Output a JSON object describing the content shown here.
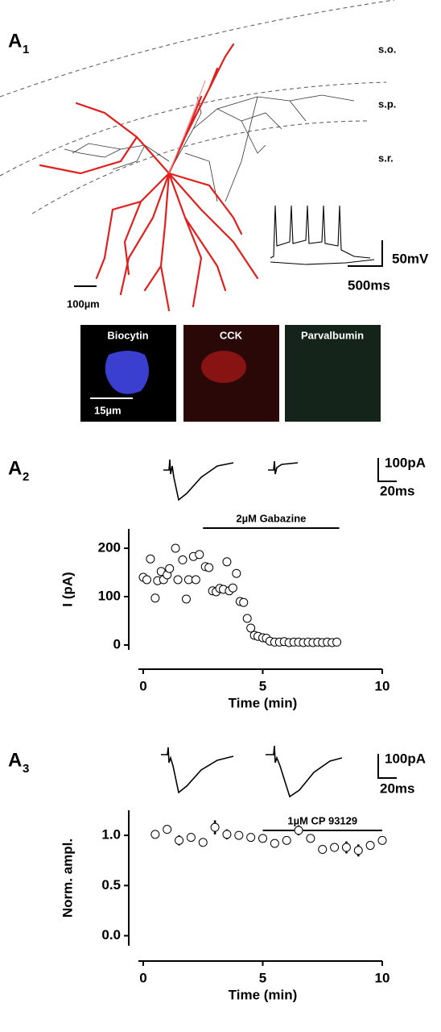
{
  "panels": [
    {
      "letter": "A",
      "index": "1"
    },
    {
      "letter": "A",
      "index": "2"
    },
    {
      "letter": "A",
      "index": "3"
    }
  ],
  "layers": [
    "s.o.",
    "s.p.",
    "s.r."
  ],
  "scale_bars": {
    "a1_length": "100µm",
    "a1_voltage": "50mV",
    "a1_time": "500ms",
    "image_length": "15µm",
    "a2_current": "100pA",
    "a2_time": "20ms",
    "a3_current": "100pA",
    "a3_time": "20ms"
  },
  "images": [
    "Biocytin",
    "CCK",
    "Parvalbumin"
  ],
  "chart_data": [
    {
      "type": "scatter",
      "x_label": "Time (min)",
      "y_label": "I (pA)",
      "color": "#000000",
      "annotation": {
        "text": "2µM Gabazine",
        "x": [
          2.5,
          8.2
        ]
      },
      "x": [
        0,
        0.15,
        0.3,
        0.5,
        0.6,
        0.75,
        0.85,
        1.0,
        1.1,
        1.35,
        1.45,
        1.65,
        1.8,
        1.9,
        2.1,
        2.2,
        2.35,
        2.6,
        2.75,
        2.9,
        3.05,
        3.2,
        3.35,
        3.5,
        3.6,
        3.75,
        3.9,
        4.05,
        4.2,
        4.35,
        4.5,
        4.65,
        4.8,
        5.0,
        5.15,
        5.3,
        5.5,
        5.7,
        5.9,
        6.1,
        6.3,
        6.5,
        6.7,
        6.9,
        7.1,
        7.3,
        7.5,
        7.7,
        7.9,
        8.1
      ],
      "values": [
        140,
        135,
        178,
        97,
        133,
        152,
        135,
        145,
        158,
        200,
        135,
        176,
        95,
        135,
        183,
        135,
        187,
        162,
        160,
        112,
        110,
        117,
        115,
        172,
        112,
        118,
        148,
        90,
        88,
        55,
        35,
        20,
        18,
        15,
        14,
        8,
        6,
        6,
        7,
        5,
        6,
        6,
        5,
        6,
        5,
        6,
        5,
        6,
        5,
        6
      ],
      "xlim": [
        0,
        10
      ],
      "xticks": [
        0,
        5,
        10
      ],
      "ylim": [
        -10,
        240
      ],
      "yticks": [
        0,
        100,
        200
      ]
    },
    {
      "type": "errorbar",
      "x_label": "Time (min)",
      "y_label": "Norm. ampl.",
      "color": "#000000",
      "annotation": {
        "text": "1µM CP 93129",
        "x": [
          5,
          10
        ]
      },
      "x": [
        0.5,
        1,
        1.5,
        2,
        2.5,
        3,
        3.5,
        4,
        4.5,
        5,
        5.5,
        6,
        6.5,
        7,
        7.5,
        8,
        8.5,
        9,
        9.5,
        10
      ],
      "values": [
        1.01,
        1.06,
        0.95,
        0.98,
        0.93,
        1.08,
        1.01,
        1.0,
        0.98,
        0.97,
        0.92,
        0.95,
        1.05,
        0.97,
        0.86,
        0.88,
        0.88,
        0.85,
        0.9,
        0.95
      ],
      "errors": [
        0.02,
        0.04,
        0.05,
        0.03,
        0.02,
        0.07,
        0.05,
        0.04,
        0.03,
        0.02,
        0.04,
        0.03,
        0.05,
        0.03,
        0.04,
        0.04,
        0.06,
        0.06,
        0.04,
        0.03
      ],
      "xlim": [
        0,
        10
      ],
      "xticks": [
        0,
        5,
        10
      ],
      "ylim": [
        -0.1,
        1.25
      ],
      "yticks": [
        {
          "value": 0,
          "label": "0.0"
        },
        {
          "value": 0.5,
          "label": "0.5"
        },
        {
          "value": 1,
          "label": "1.0"
        }
      ]
    }
  ]
}
